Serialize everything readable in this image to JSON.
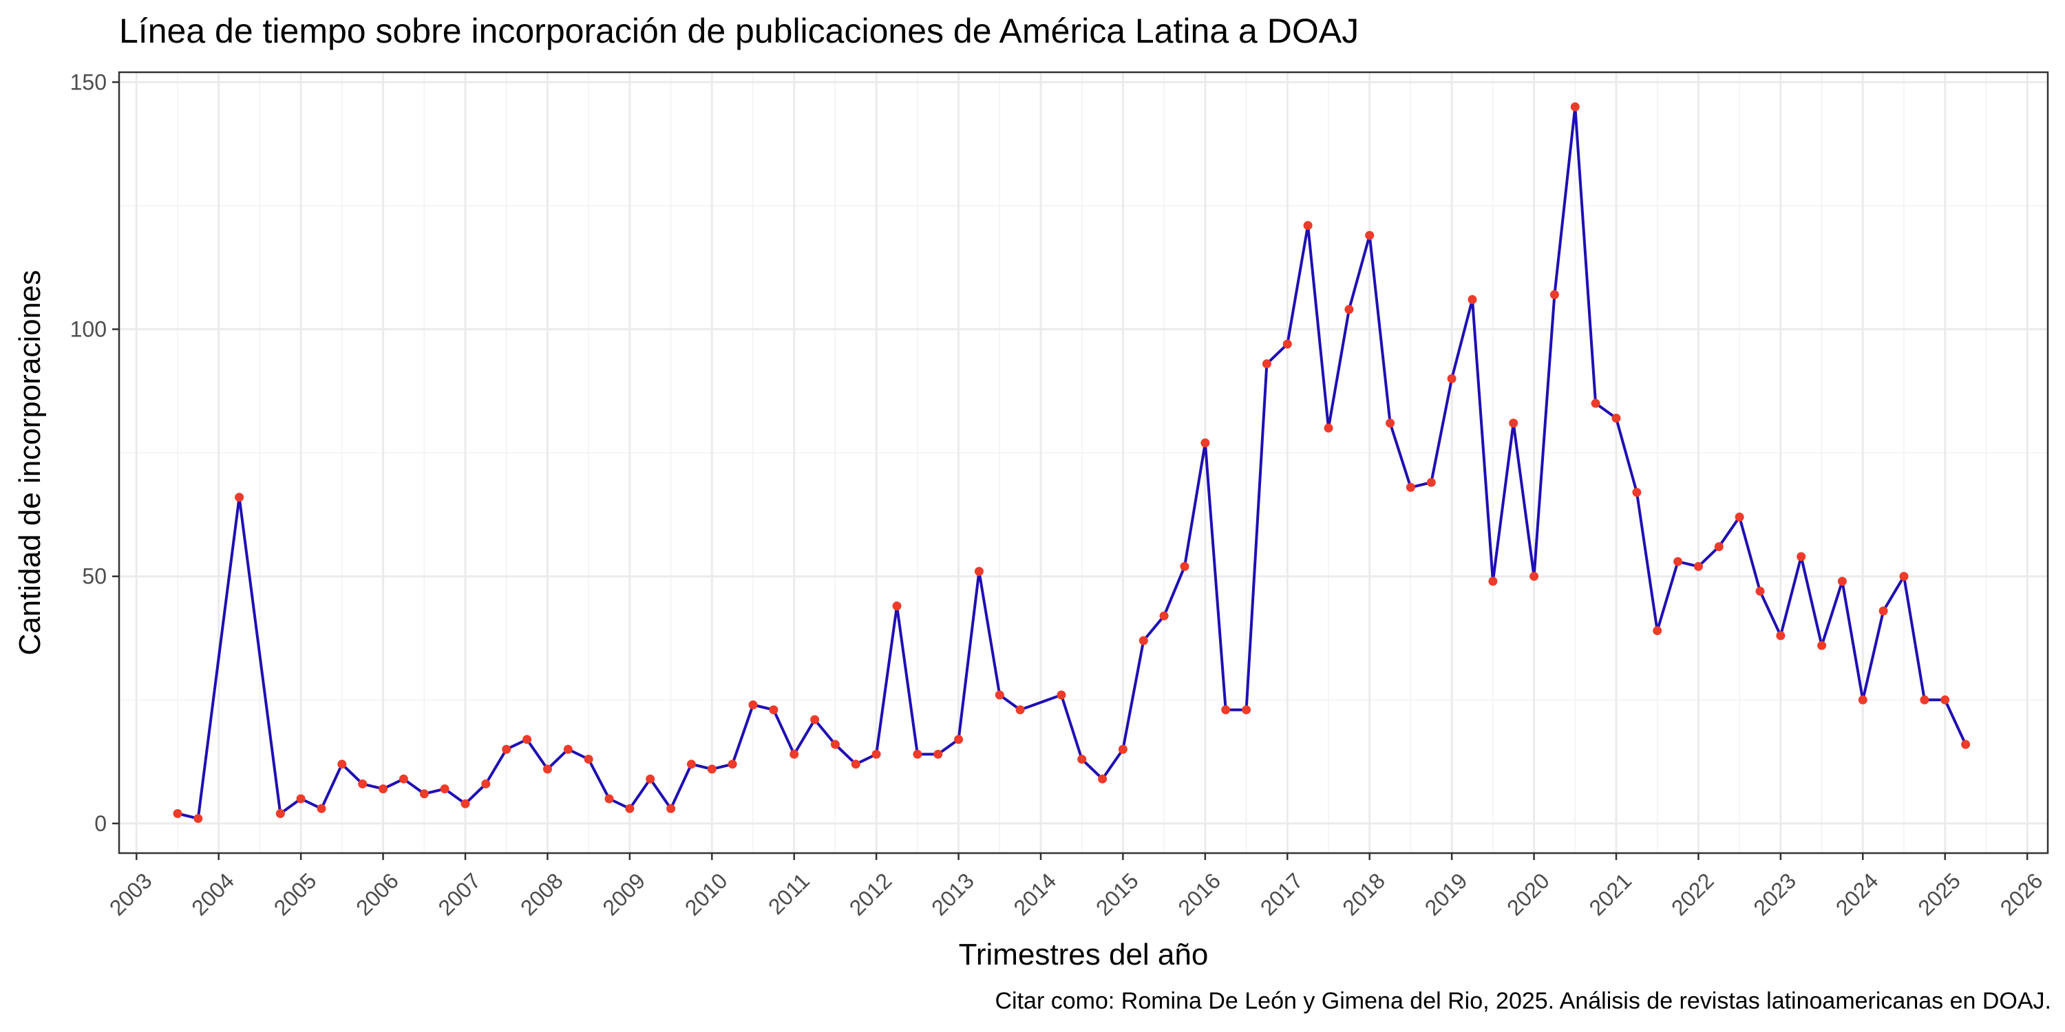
{
  "chart_data": {
    "type": "line",
    "title": "Línea de tiempo sobre incorporación de publicaciones de América Latina a DOAJ",
    "xlabel": "Trimestres del año",
    "ylabel": "Cantidad de incorporaciones",
    "caption": "Citar como: Romina De León y Gimena del Rio, 2025. Análisis de revistas latinoamericanas en DOAJ.",
    "xlim": [
      "2002-10-15",
      "2026-04-01"
    ],
    "ylim": [
      -6,
      152
    ],
    "x_ticks": [
      "2003",
      "2004",
      "2005",
      "2006",
      "2007",
      "2008",
      "2009",
      "2010",
      "2011",
      "2012",
      "2013",
      "2014",
      "2015",
      "2016",
      "2017",
      "2018",
      "2019",
      "2020",
      "2021",
      "2022",
      "2023",
      "2024",
      "2025",
      "2026"
    ],
    "y_ticks": [
      0,
      50,
      100,
      150
    ],
    "grid": true,
    "colors": {
      "line": "#1f0fb4",
      "points": "#ee3b2a",
      "panel_border": "#333333",
      "grid": "#ebebeb"
    },
    "series": [
      {
        "x": [
          "2003-07-01",
          "2003-10-01",
          "2004-04-01",
          "2004-10-01",
          "2005-01-01",
          "2005-04-01",
          "2005-07-01",
          "2005-10-01",
          "2006-01-01",
          "2006-04-01",
          "2006-07-01",
          "2006-10-01",
          "2007-01-01",
          "2007-04-01",
          "2007-07-01",
          "2007-10-01",
          "2008-01-01",
          "2008-04-01",
          "2008-07-01",
          "2008-10-01",
          "2009-01-01",
          "2009-04-01",
          "2009-07-01",
          "2009-10-01",
          "2010-01-01",
          "2010-04-01",
          "2010-07-01",
          "2010-10-01",
          "2011-01-01",
          "2011-04-01",
          "2011-07-01",
          "2011-10-01",
          "2012-01-01",
          "2012-04-01",
          "2012-07-01",
          "2012-10-01",
          "2013-01-01",
          "2013-04-01",
          "2013-07-01",
          "2013-10-01",
          "2014-04-01",
          "2014-07-01",
          "2014-10-01",
          "2015-01-01",
          "2015-04-01",
          "2015-07-01",
          "2015-10-01",
          "2016-01-01",
          "2016-04-01",
          "2016-07-01",
          "2016-10-01",
          "2017-01-01",
          "2017-04-01",
          "2017-07-01",
          "2017-10-01",
          "2018-01-01",
          "2018-04-01",
          "2018-07-01",
          "2018-10-01",
          "2019-01-01",
          "2019-04-01",
          "2019-07-01",
          "2019-10-01",
          "2020-01-01",
          "2020-04-01",
          "2020-07-01",
          "2020-10-01",
          "2021-01-01",
          "2021-04-01",
          "2021-07-01",
          "2021-10-01",
          "2022-01-01",
          "2022-04-01",
          "2022-07-01",
          "2022-10-01",
          "2023-01-01",
          "2023-04-01",
          "2023-07-01",
          "2023-10-01",
          "2024-01-01",
          "2024-04-01",
          "2024-07-01",
          "2024-10-01",
          "2025-01-01",
          "2025-04-01"
        ],
        "y": [
          2,
          1,
          66,
          2,
          5,
          3,
          12,
          8,
          7,
          9,
          6,
          7,
          4,
          8,
          15,
          17,
          11,
          15,
          13,
          5,
          3,
          9,
          3,
          12,
          11,
          12,
          24,
          23,
          14,
          21,
          16,
          12,
          14,
          44,
          14,
          14,
          17,
          51,
          26,
          23,
          26,
          13,
          9,
          15,
          37,
          42,
          52,
          77,
          23,
          23,
          93,
          97,
          121,
          80,
          104,
          119,
          81,
          68,
          69,
          90,
          106,
          49,
          81,
          50,
          107,
          145,
          85,
          82,
          67,
          39,
          53,
          52,
          56,
          62,
          47,
          38,
          54,
          36,
          49,
          25,
          43,
          50,
          25,
          25,
          16
        ]
      }
    ]
  }
}
